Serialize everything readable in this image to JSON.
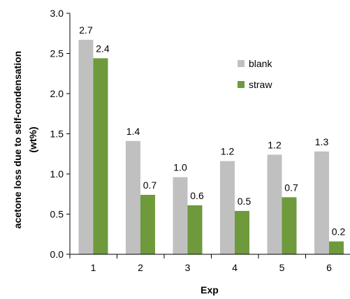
{
  "chart_data": {
    "type": "bar",
    "categories": [
      "1",
      "2",
      "3",
      "4",
      "5",
      "6"
    ],
    "series": [
      {
        "name": "blank",
        "values": [
          2.67,
          1.41,
          0.96,
          1.16,
          1.24,
          1.28
        ],
        "labels": [
          "2.7",
          "1.4",
          "1.0",
          "1.2",
          "1.2",
          "1.3"
        ],
        "color": "#c0c0c0"
      },
      {
        "name": "straw",
        "values": [
          2.44,
          0.74,
          0.61,
          0.54,
          0.71,
          0.16
        ],
        "labels": [
          "2.4",
          "0.7",
          "0.6",
          "0.5",
          "0.7",
          "0.2"
        ],
        "color": "#6e9a3c"
      }
    ],
    "title": "",
    "xlabel": "Exp",
    "ylabel_line1": "acetone loss due to self-condensation",
    "ylabel_line2": "(wt%)",
    "ylim": [
      0,
      3.0
    ],
    "yticks": [
      "0.0",
      "0.5",
      "1.0",
      "1.5",
      "2.0",
      "2.5",
      "3.0"
    ],
    "grid": false,
    "legend_position": "top-right"
  }
}
